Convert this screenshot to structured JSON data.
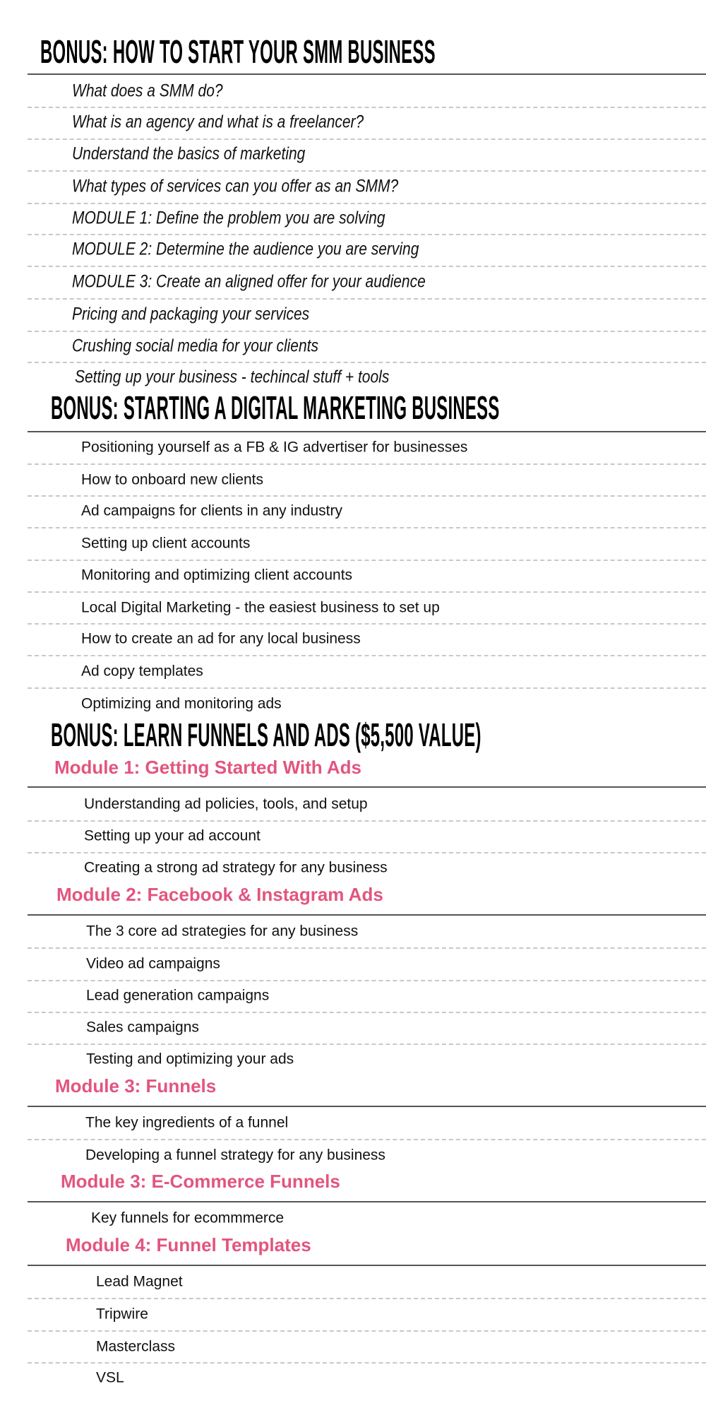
{
  "colors": {
    "module_heading": "#e2557f",
    "title": "#000000",
    "rule": "#555555",
    "dashed_rule": "#c8c8c8"
  },
  "sections": [
    {
      "title": "BONUS: HOW TO START YOUR SMM BUSINESS",
      "items": [
        "What does a SMM do?",
        "What is an agency and what is a freelancer?",
        "Understand the basics of marketing",
        "What types of services can you offer as an SMM?",
        "MODULE 1: Define the problem you are solving",
        "MODULE 2: Determine the audience you are serving",
        "MODULE 3: Create an aligned offer for your audience",
        "Pricing and packaging your services",
        "Crushing social media for your clients",
        "Setting up your business - techincal stuff + tools"
      ]
    },
    {
      "title": "BONUS: STARTING A DIGITAL MARKETING BUSINESS",
      "items": [
        "Positioning yourself as a FB & IG advertiser for businesses",
        "How to onboard new clients",
        "Ad campaigns for clients in any industry",
        "Setting up client accounts",
        "Monitoring and optimizing client accounts",
        "Local Digital Marketing - the easiest business to set up",
        "How to create an ad for any local business",
        "Ad copy templates",
        "Optimizing and monitoring ads"
      ]
    },
    {
      "title": "BONUS: LEARN FUNNELS AND ADS ($5,500 VALUE)",
      "modules": [
        {
          "heading": "Module 1: Getting Started With Ads",
          "items": [
            "Understanding ad policies, tools, and setup",
            "Setting up your ad account",
            "Creating a strong ad strategy for any business"
          ]
        },
        {
          "heading": "Module 2: Facebook & Instagram Ads",
          "items": [
            "The 3 core ad strategies for any business",
            "Video ad campaigns",
            "Lead generation campaigns",
            "Sales campaigns",
            "Testing and optimizing your ads"
          ]
        },
        {
          "heading": "Module 3: Funnels",
          "items": [
            "The key ingredients of a funnel",
            "Developing a funnel strategy for any business"
          ]
        },
        {
          "heading": "Module 3: E-Commerce Funnels",
          "items": [
            "Key funnels for ecommmerce"
          ]
        },
        {
          "heading": "Module 4: Funnel Templates",
          "items": [
            "Lead Magnet",
            "Tripwire",
            "Masterclass",
            "VSL"
          ]
        }
      ]
    }
  ]
}
